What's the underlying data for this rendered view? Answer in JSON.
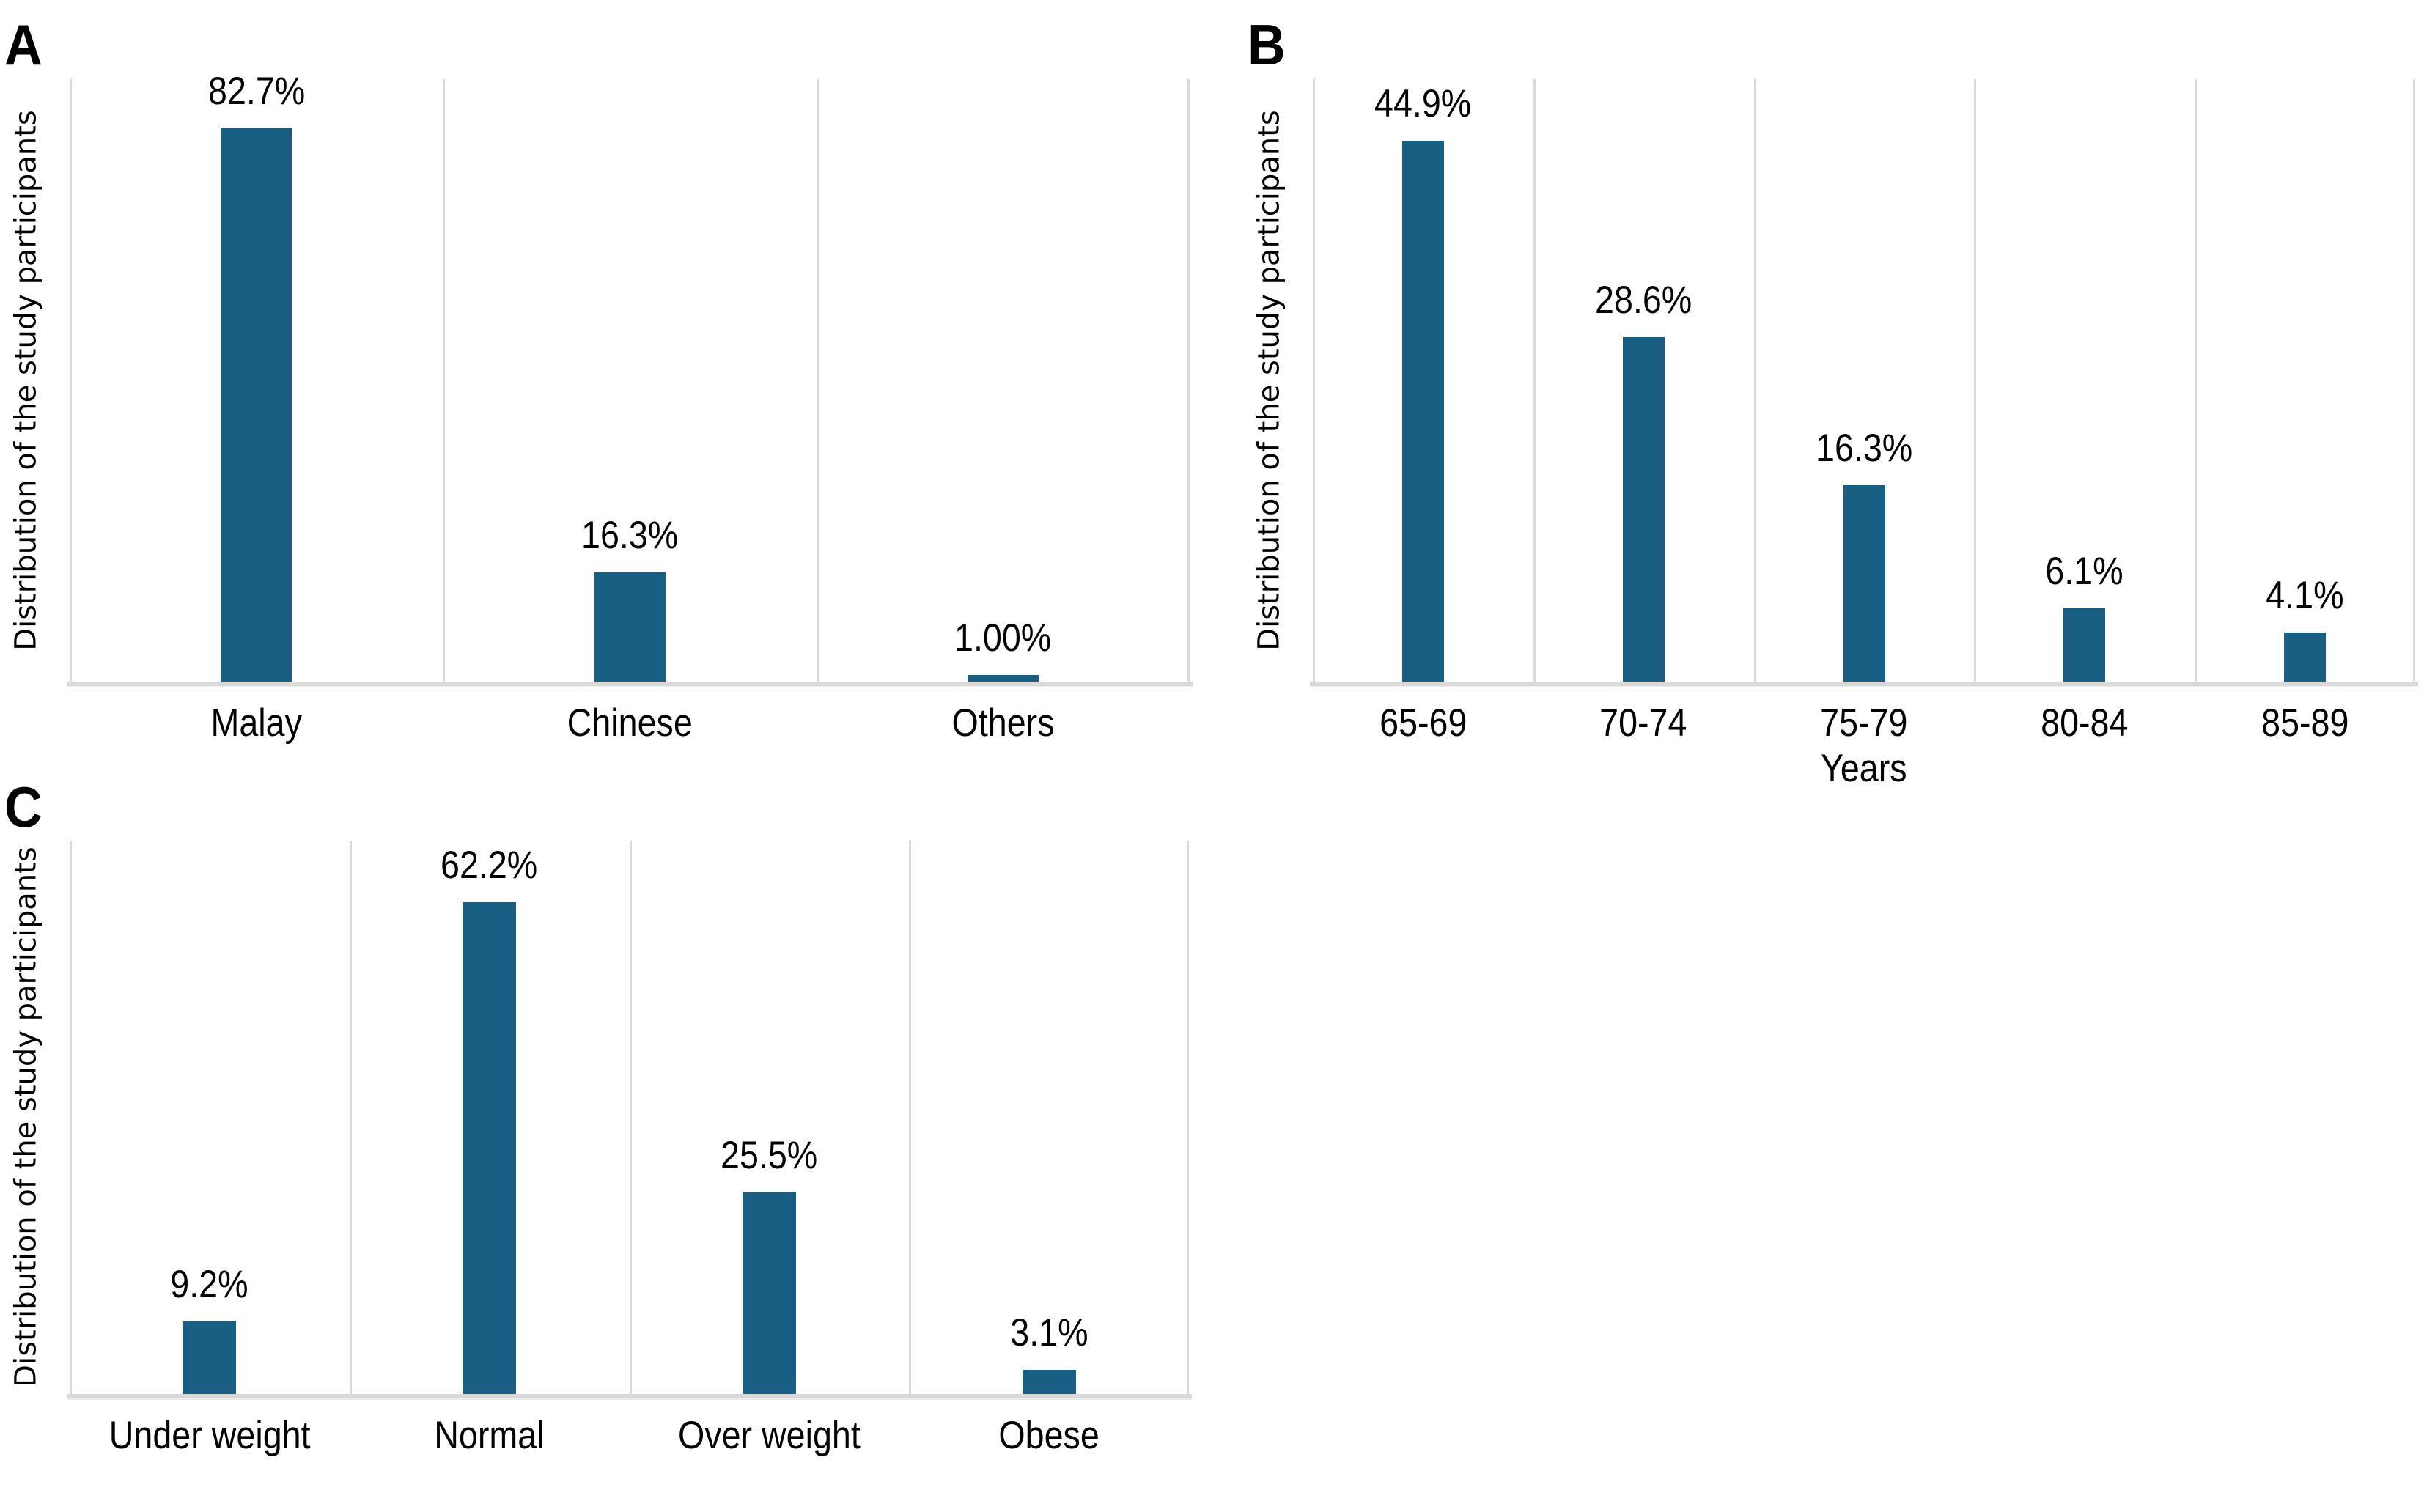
{
  "figure": {
    "background": "#ffffff",
    "bar_color": "#185f83",
    "gridline_color": "#d9d9d9",
    "text_color": "#000000",
    "y_axis_label": "Distribution of the study participants"
  },
  "panels": [
    {
      "letter": "A"
    },
    {
      "letter": "B"
    },
    {
      "letter": "C"
    }
  ],
  "chart_data": [
    {
      "type": "bar",
      "panel": "A",
      "title": "",
      "categories": [
        "Malay",
        "Chinese",
        "Others"
      ],
      "values": [
        82.7,
        16.3,
        1.0
      ],
      "value_labels": [
        "82.7%",
        "16.3%",
        "1.00%"
      ],
      "xlabel": "",
      "ylabel": "Distribution of the study participants",
      "ylim": [
        0,
        90
      ],
      "grid": "vertical-band-separators",
      "legend": "none",
      "bar_color": "#185f83"
    },
    {
      "type": "bar",
      "panel": "B",
      "title": "",
      "categories": [
        "65-69",
        "70-74",
        "75-79",
        "80-84",
        "85-89"
      ],
      "values": [
        44.9,
        28.6,
        16.3,
        6.1,
        4.1
      ],
      "value_labels": [
        "44.9%",
        "28.6%",
        "16.3%",
        "6.1%",
        "4.1%"
      ],
      "xlabel": "Years",
      "ylabel": "Distribution of the study participants",
      "ylim": [
        0,
        50
      ],
      "grid": "vertical-band-separators",
      "legend": "none",
      "bar_color": "#185f83"
    },
    {
      "type": "bar",
      "panel": "C",
      "title": "",
      "categories": [
        "Under weight",
        "Normal",
        "Over weight",
        "Obese"
      ],
      "values": [
        9.2,
        62.2,
        25.5,
        3.1
      ],
      "value_labels": [
        "9.2%",
        "62.2%",
        "25.5%",
        "3.1%"
      ],
      "xlabel": "",
      "ylabel": "Distribution of the study participants",
      "ylim": [
        0,
        70
      ],
      "grid": "vertical-band-separators",
      "legend": "none",
      "bar_color": "#185f83"
    }
  ]
}
